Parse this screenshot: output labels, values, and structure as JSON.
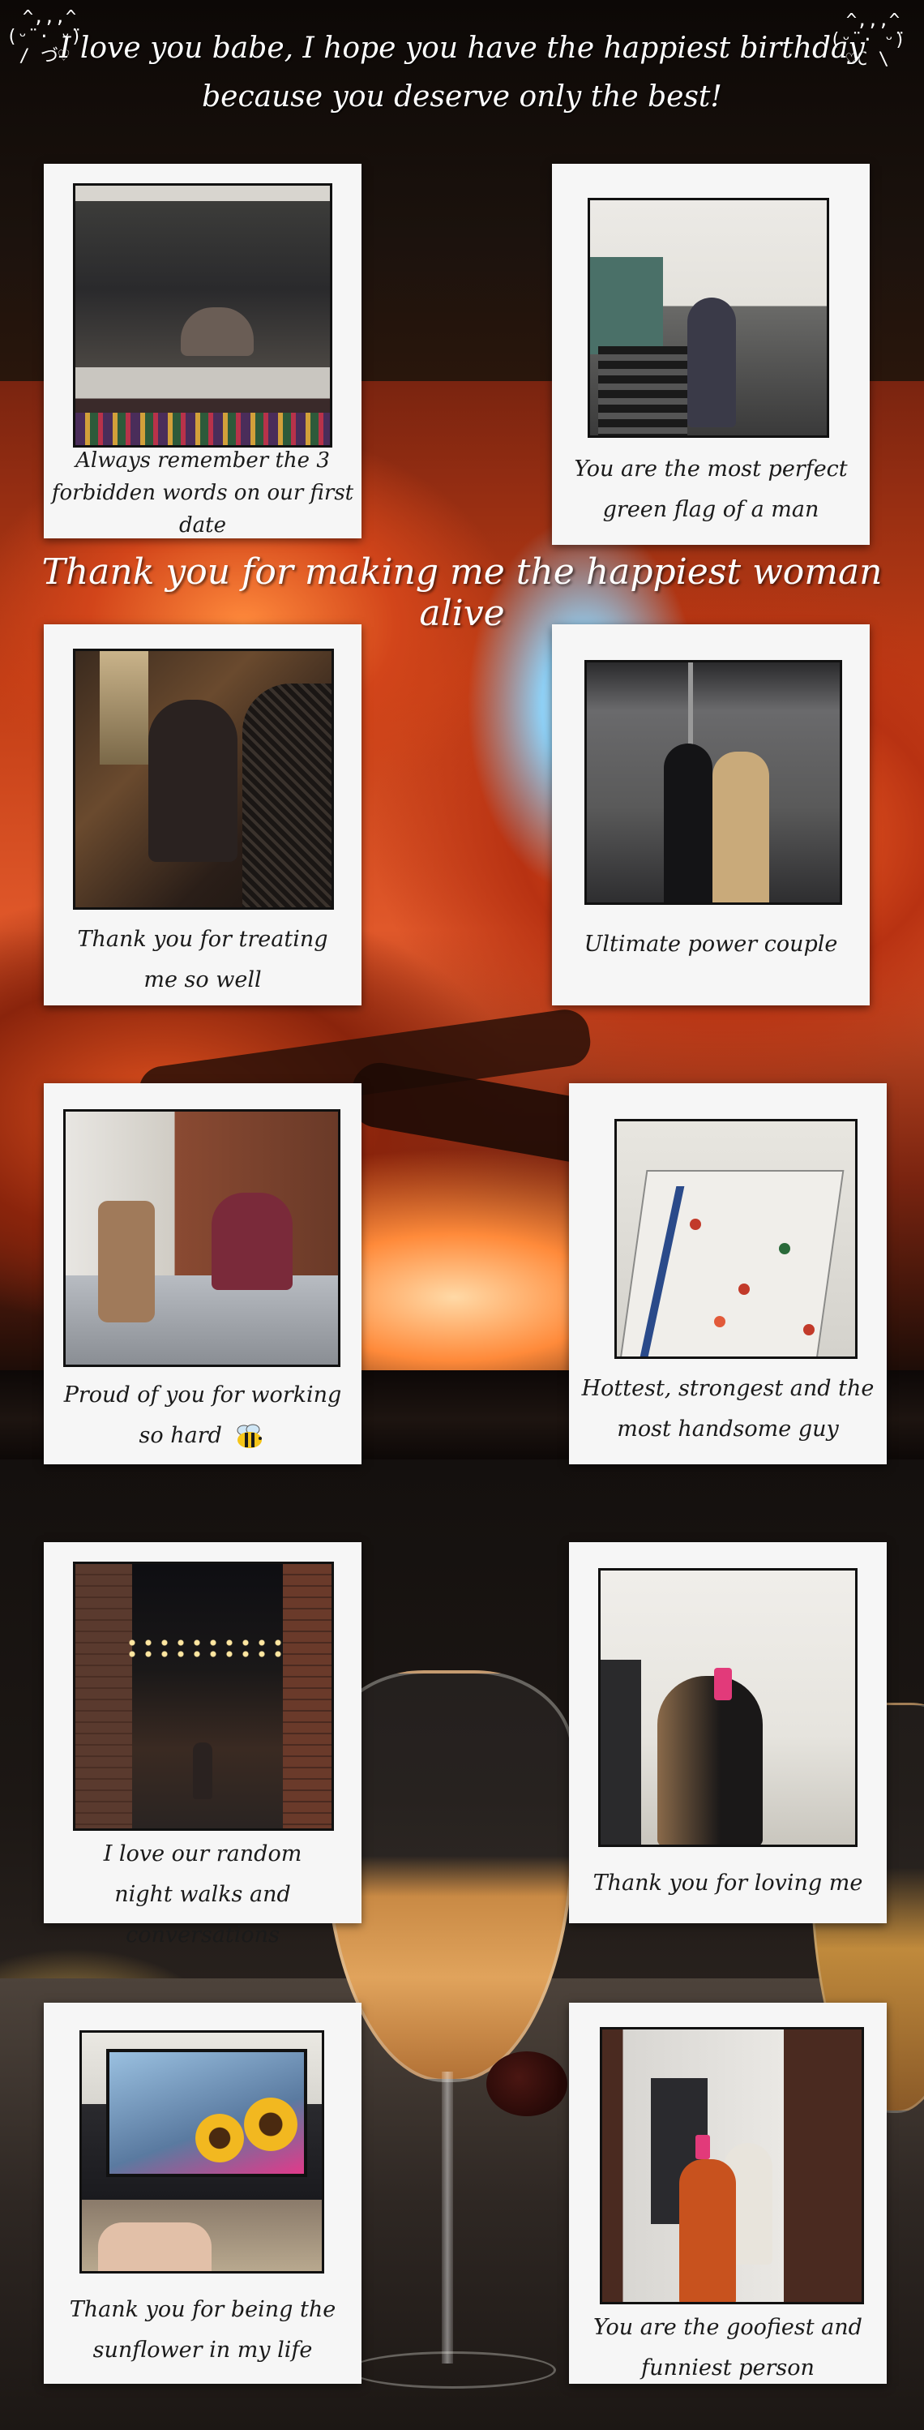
{
  "header": {
    "line1": "I love you babe, I hope you have the happiest birthday",
    "line2": "because you deserve only the best!",
    "kaomoji_left": " ^,,,^\n(ᵕ̈ · ᵕ̈)\n/ づ♡",
    "kaomoji_right": " ^,,,^\n(ᵕ̈ · ᵕ̈)\n♡С \\"
  },
  "tagline": "Thank you for making me the happiest woman alive",
  "cards": [
    {
      "caption": [
        "Always remember the 3",
        "forbidden words on our first",
        "date"
      ]
    },
    {
      "caption": [
        "You are the most perfect",
        "green flag of a man"
      ]
    },
    {
      "caption": [
        "Thank you for treating",
        "me so well"
      ]
    },
    {
      "caption": [
        "Ultimate power couple"
      ]
    },
    {
      "caption": [
        "Proud of you for working",
        "so hard"
      ]
    },
    {
      "caption": [
        "Hottest, strongest and the",
        "most handsome guy"
      ]
    },
    {
      "caption": [
        "I love our random",
        "night walks and conversations"
      ]
    },
    {
      "caption": [
        "Thank you for loving me"
      ]
    },
    {
      "caption": [
        "Thank you for being the",
        "sunflower in my life"
      ]
    },
    {
      "caption": [
        "You are the goofiest and",
        "funniest person"
      ]
    }
  ],
  "icons": {
    "bee": "bee-emoji"
  }
}
